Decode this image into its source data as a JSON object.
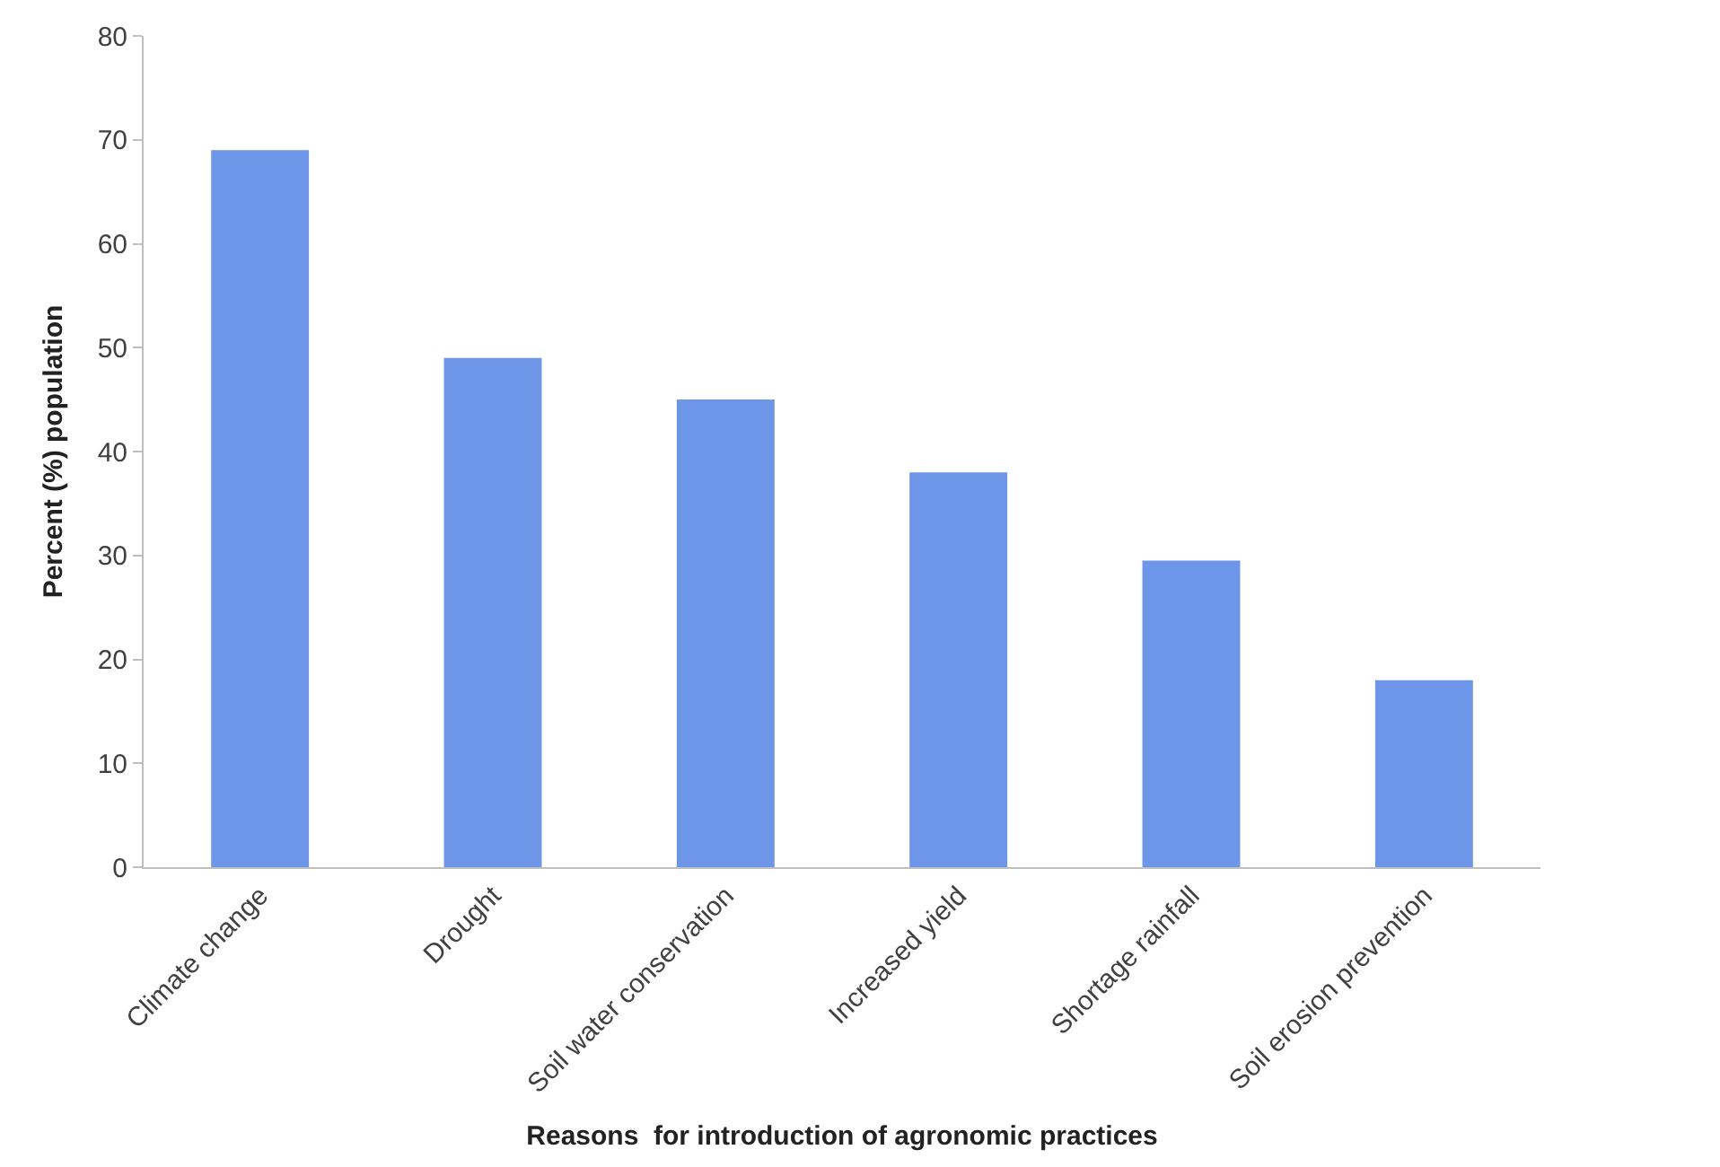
{
  "chart_data": {
    "type": "bar",
    "xlabel": "Reasons  for introduction of agronomic practices",
    "ylabel": "Percent (%) population",
    "categories": [
      "Climate change",
      "Drought",
      "Soil water conservation",
      "Increased yield",
      "Shortage rainfall",
      "Soil erosion prevention"
    ],
    "values": [
      69,
      49,
      45,
      38,
      29.5,
      18
    ],
    "color": "#6d95e8",
    "ylim": [
      0,
      80
    ],
    "yticks": [
      0,
      10,
      20,
      30,
      40,
      50,
      60,
      70,
      80
    ]
  }
}
